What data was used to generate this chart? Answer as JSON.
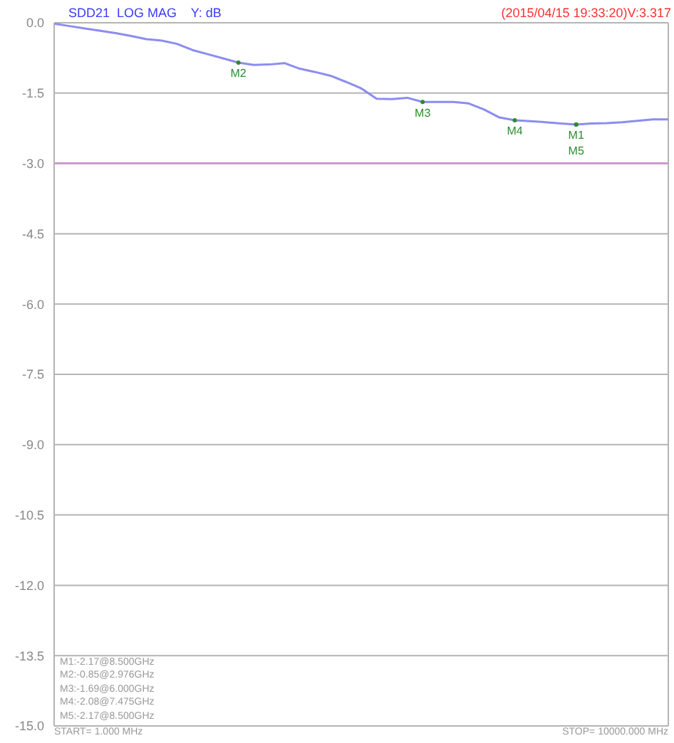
{
  "chart_data": {
    "type": "line",
    "title": "SDD21  LOG MAG    Y: dB",
    "subtitle": "(2015/04/15 19:33:20)V:3.317",
    "categories": [
      null,
      null,
      null,
      null,
      null,
      null,
      null,
      null,
      null,
      null,
      null,
      null,
      null,
      null,
      null,
      null,
      null,
      null,
      null,
      null,
      null,
      null,
      null,
      null,
      null,
      null,
      null,
      null,
      null,
      null,
      null,
      null,
      null,
      null,
      null,
      null,
      null,
      null,
      null,
      null,
      null
    ],
    "series": [
      {
        "color": "#8c8cf0",
        "values": [
          -0.02,
          -0.07,
          -0.12,
          -0.17,
          -0.22,
          -0.28,
          -0.35,
          -0.38,
          -0.45,
          -0.58,
          -0.67,
          -0.76,
          -0.85,
          -0.9,
          -0.89,
          -0.86,
          -0.98,
          -1.05,
          -1.13,
          -1.26,
          -1.4,
          -1.62,
          -1.63,
          -1.6,
          -1.69,
          -1.69,
          -1.69,
          -1.72,
          -1.85,
          -2.02,
          -2.08,
          -2.1,
          -2.12,
          -2.15,
          -2.17,
          -2.15,
          -2.14,
          -2.12,
          -2.09,
          -2.06,
          -2.06
        ]
      }
    ],
    "ylim": [
      -15,
      0
    ],
    "yticks": [
      {
        "value": 0,
        "label": "0.0"
      },
      {
        "value": -1.5,
        "label": "-1.5"
      },
      {
        "value": -3,
        "label": "-3.0"
      },
      {
        "value": -4.5,
        "label": "-4.5"
      },
      {
        "value": -6,
        "label": "-6.0"
      },
      {
        "value": -7.5,
        "label": "-7.5"
      },
      {
        "value": -9,
        "label": "-9.0"
      },
      {
        "value": -10.5,
        "label": "-10.5"
      },
      {
        "value": -12,
        "label": "-12.0"
      },
      {
        "value": -13.5,
        "label": "-13.5"
      },
      {
        "value": -15,
        "label": "-15.0"
      }
    ],
    "grid": true,
    "tick_labels": "y",
    "line_style": "solid",
    "ref_lines": [
      {
        "axis": "y",
        "value": -3,
        "color": "#cc99cc"
      }
    ],
    "annotations": [
      {
        "text": "M1",
        "y": -2.17
      },
      {
        "text": "M2",
        "y": -0.85
      },
      {
        "text": "M3",
        "y": -1.69
      },
      {
        "text": "M4",
        "y": -2.08
      },
      {
        "text": "M5",
        "y": -2.17
      },
      "M1:-2.17@8.500GHz",
      "M2:-0.85@2.976GHz",
      "M3:-1.69@6.000GHz",
      "M4:-2.08@7.475GHz",
      "M5:-2.17@8.500GHz",
      "START= 1.000 MHz",
      "STOP= 10000.000 MHz"
    ]
  }
}
